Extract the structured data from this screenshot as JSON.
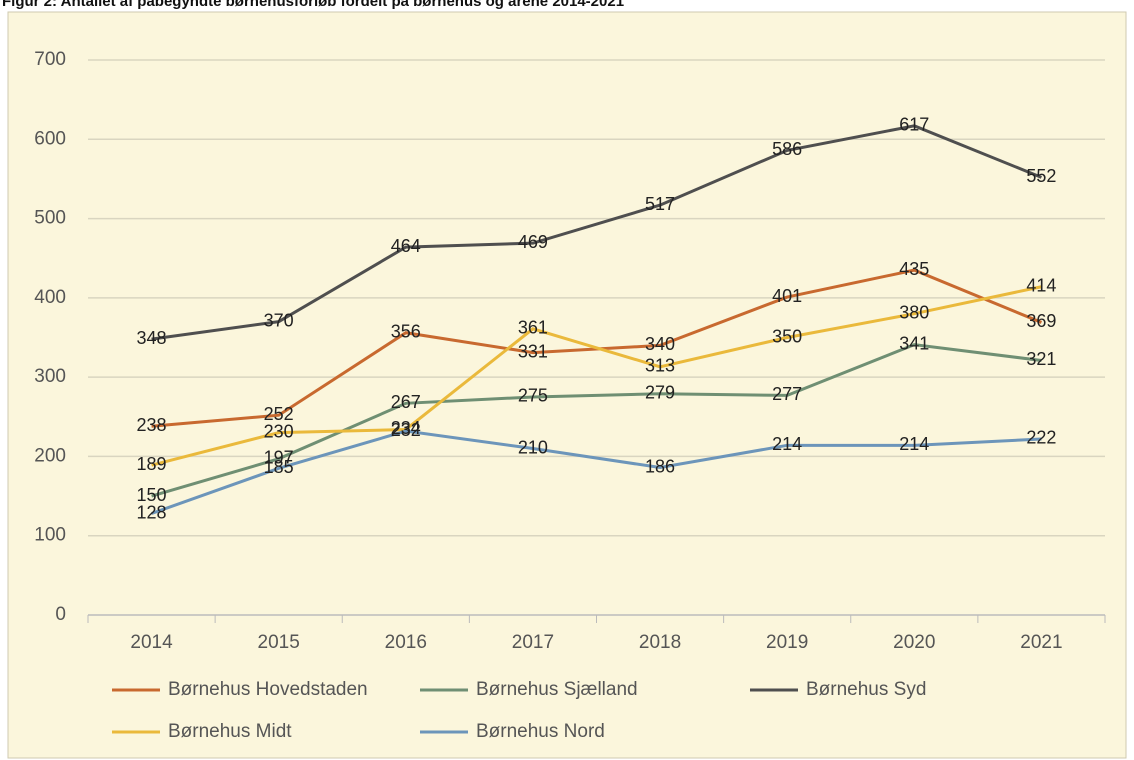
{
  "chart_data": {
    "type": "line",
    "title": "Figur 2: Antallet af påbegyndte børnehusforløb fordelt på børnehus og årene 2014-2021",
    "categories": [
      "2014",
      "2015",
      "2016",
      "2017",
      "2018",
      "2019",
      "2020",
      "2021"
    ],
    "series": [
      {
        "name": "Børnehus Hovedstaden",
        "color": "#c8692f",
        "values": [
          238,
          252,
          356,
          331,
          340,
          401,
          435,
          369
        ]
      },
      {
        "name": "Børnehus Sjælland",
        "color": "#6f8f73",
        "values": [
          150,
          197,
          267,
          275,
          279,
          277,
          341,
          321
        ]
      },
      {
        "name": "Børnehus Syd",
        "color": "#4f4f4f",
        "values": [
          348,
          370,
          464,
          469,
          517,
          586,
          617,
          552
        ]
      },
      {
        "name": "Børnehus Midt",
        "color": "#eab93b",
        "values": [
          189,
          230,
          234,
          361,
          313,
          350,
          380,
          414
        ]
      },
      {
        "name": "Børnehus Nord",
        "color": "#6c95ba",
        "values": [
          128,
          185,
          232,
          210,
          186,
          214,
          214,
          222
        ]
      }
    ],
    "ylim": [
      0,
      700
    ],
    "yticks": [
      0,
      100,
      200,
      300,
      400,
      500,
      600,
      700
    ],
    "grid": true
  }
}
